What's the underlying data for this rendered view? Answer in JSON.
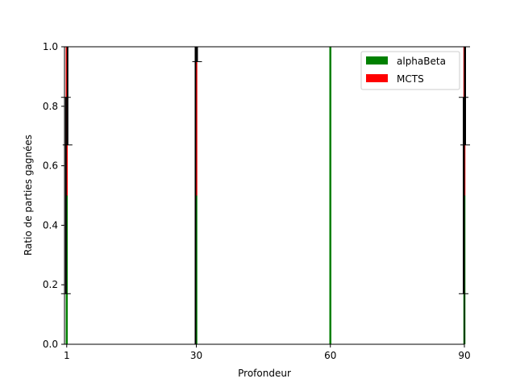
{
  "chart_data": {
    "type": "bar",
    "title": "",
    "xlabel": "Profondeur",
    "ylabel": "Ratio de parties gagnées",
    "x": [
      1,
      30,
      60,
      90
    ],
    "xlim": [
      0.5,
      90.0
    ],
    "ylim": [
      0.0,
      1.0
    ],
    "xticks": [
      "1",
      "30",
      "60",
      "90"
    ],
    "yticks": [
      "0.0",
      "0.2",
      "0.4",
      "0.6",
      "0.8",
      "1.0"
    ],
    "grid": false,
    "legend_position": "top-right",
    "series": [
      {
        "name": "alphaBeta",
        "color": "#008000",
        "values": [
          0.5,
          0.5,
          1.0,
          0.5
        ],
        "error": [
          0.33,
          0.5,
          0.0,
          0.33
        ]
      },
      {
        "name": "MCTS",
        "color": "#ff0000",
        "values": [
          0.5,
          0.5,
          0.0,
          0.5
        ],
        "error": [
          0.33,
          0.05,
          0.0,
          0.33
        ]
      }
    ]
  }
}
